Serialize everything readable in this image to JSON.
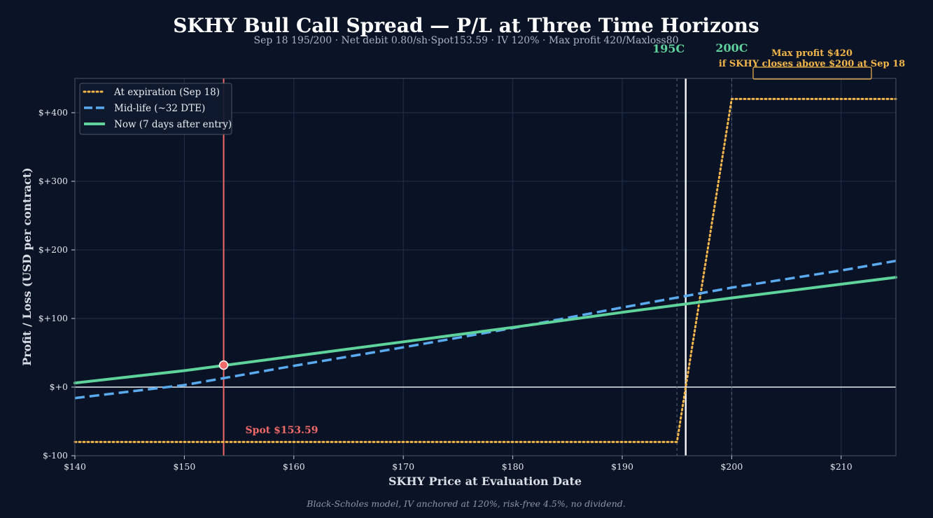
{
  "colors": {
    "background": "#0b1426",
    "plot_border": "#4a5468",
    "grid": "#223049",
    "expiration": "#f4b64a",
    "midlife": "#5aaaf0",
    "now": "#5fd39c",
    "spot": "#f06a6a",
    "zero_line": "#e8ecf2",
    "strike_195": "#5fd39c",
    "strike_200": "#5fd39c",
    "breakeven": "#f2f2f2"
  },
  "chart_data": {
    "type": "line",
    "title": "SKHY Bull Call Spread — P/L at Three Time Horizons",
    "subtitle": "Sep 18 195/200 · Net debit 0.80/sh·Spot153.59 · IV 120% · Max profit 420/Maxloss80",
    "xlabel": "SKHY Price at Evaluation Date",
    "ylabel": "Profit / Loss (USD per contract)",
    "xlim": [
      140,
      215
    ],
    "ylim": [
      -100,
      450
    ],
    "x_ticks": [
      140,
      150,
      160,
      170,
      180,
      190,
      200,
      210
    ],
    "x_tick_labels": [
      "$140",
      "$150",
      "$160",
      "$170",
      "$180",
      "$190",
      "$200",
      "$210"
    ],
    "y_ticks": [
      -100,
      0,
      100,
      200,
      300,
      400
    ],
    "y_tick_labels": [
      "$-100",
      "$+0",
      "$+100",
      "$+200",
      "$+300",
      "$+400"
    ],
    "grid": true,
    "legend_position": "top-left",
    "series": [
      {
        "name": "At expiration (Sep 18)",
        "style": "dotted",
        "x": [
          140,
          195,
          200,
          215
        ],
        "y": [
          -80,
          -80,
          420,
          420
        ]
      },
      {
        "name": "Mid-life (~32 DTE)",
        "style": "dashed",
        "x": [
          140,
          150,
          160,
          170,
          180,
          190,
          200,
          210,
          215
        ],
        "y": [
          -16,
          3,
          31,
          58,
          86,
          116,
          145,
          170,
          184
        ]
      },
      {
        "name": "Now (7 days after entry)",
        "style": "solid",
        "x": [
          140,
          150,
          160,
          170,
          180,
          190,
          200,
          210,
          215
        ],
        "y": [
          6,
          24,
          45,
          66,
          87,
          109,
          130,
          150,
          160
        ]
      }
    ],
    "spot": {
      "x": 153.59,
      "y": 32,
      "label": "Spot $153.59"
    },
    "strikes": [
      {
        "x": 195,
        "label": "195C"
      },
      {
        "x": 200,
        "label": "200C"
      }
    ],
    "breakeven_x": 195.8,
    "annotation": {
      "line1": "Max profit $420",
      "line2": "if SKHY closes above $200 at Sep 18"
    },
    "footnote": "Black-Scholes model, IV anchored at 120%, risk-free 4.5%, no dividend."
  }
}
